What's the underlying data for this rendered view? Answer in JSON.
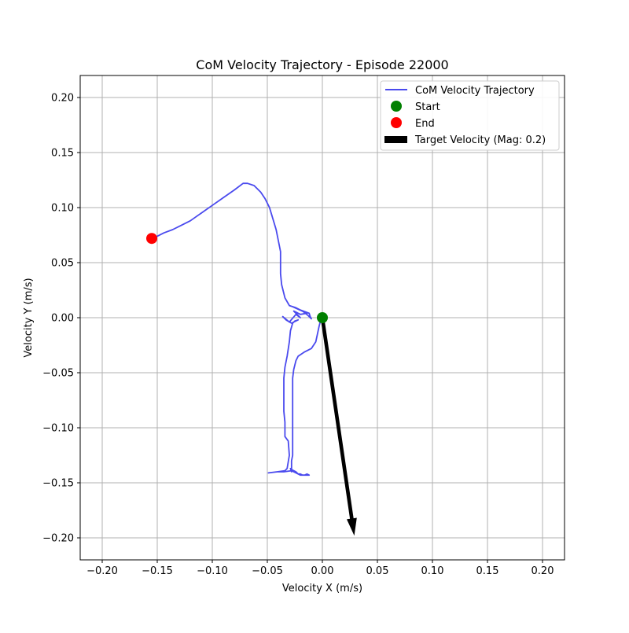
{
  "chart_data": {
    "type": "line",
    "title": "CoM Velocity Trajectory - Episode 22000",
    "xlabel": "Velocity X (m/s)",
    "ylabel": "Velocity Y (m/s)",
    "xlim": [
      -0.22,
      0.22
    ],
    "ylim": [
      -0.22,
      0.22
    ],
    "xticks": [
      -0.2,
      -0.15,
      -0.1,
      -0.05,
      0.0,
      0.05,
      0.1,
      0.15,
      0.2
    ],
    "xtick_labels": [
      "−0.20",
      "−0.15",
      "−0.10",
      "−0.05",
      "0.00",
      "0.05",
      "0.10",
      "0.15",
      "0.20"
    ],
    "yticks": [
      -0.2,
      -0.15,
      -0.1,
      -0.05,
      0.0,
      0.05,
      0.1,
      0.15,
      0.2
    ],
    "ytick_labels": [
      "−0.20",
      "−0.15",
      "−0.10",
      "−0.05",
      "0.00",
      "0.05",
      "0.10",
      "0.15",
      "0.20"
    ],
    "grid": true,
    "legend_position": "top-right",
    "colors": {
      "trajectory": "#4a4aee",
      "start": "#008000",
      "end": "#ff0000",
      "target": "#000000",
      "grid": "#b0b0b0"
    },
    "series": [
      {
        "name": "CoM Velocity Trajectory",
        "points": [
          [
            0.0,
            0.0
          ],
          [
            -0.002,
            -0.004
          ],
          [
            -0.003,
            -0.008
          ],
          [
            -0.006,
            -0.022
          ],
          [
            -0.01,
            -0.028
          ],
          [
            -0.016,
            -0.031
          ],
          [
            -0.022,
            -0.035
          ],
          [
            -0.024,
            -0.039
          ],
          [
            -0.025,
            -0.043
          ],
          [
            -0.026,
            -0.047
          ],
          [
            -0.027,
            -0.055
          ],
          [
            -0.027,
            -0.07
          ],
          [
            -0.027,
            -0.09
          ],
          [
            -0.027,
            -0.11
          ],
          [
            -0.027,
            -0.125
          ],
          [
            -0.028,
            -0.13
          ],
          [
            -0.028,
            -0.14
          ],
          [
            -0.029,
            -0.137
          ],
          [
            -0.028,
            -0.138
          ],
          [
            -0.026,
            -0.139
          ],
          [
            -0.024,
            -0.14
          ],
          [
            -0.022,
            -0.142
          ],
          [
            -0.02,
            -0.142
          ],
          [
            -0.018,
            -0.143
          ],
          [
            -0.016,
            -0.143
          ],
          [
            -0.014,
            -0.142
          ],
          [
            -0.012,
            -0.143
          ],
          [
            -0.02,
            -0.143
          ],
          [
            -0.028,
            -0.139
          ],
          [
            -0.035,
            -0.14
          ],
          [
            -0.041,
            -0.14
          ],
          [
            -0.049,
            -0.141
          ],
          [
            -0.041,
            -0.14
          ],
          [
            -0.034,
            -0.139
          ],
          [
            -0.032,
            -0.137
          ],
          [
            -0.031,
            -0.131
          ],
          [
            -0.03,
            -0.125
          ],
          [
            -0.031,
            -0.112
          ],
          [
            -0.034,
            -0.108
          ],
          [
            -0.034,
            -0.095
          ],
          [
            -0.035,
            -0.085
          ],
          [
            -0.035,
            -0.075
          ],
          [
            -0.035,
            -0.065
          ],
          [
            -0.035,
            -0.055
          ],
          [
            -0.034,
            -0.045
          ],
          [
            -0.032,
            -0.035
          ],
          [
            -0.03,
            -0.022
          ],
          [
            -0.029,
            -0.012
          ],
          [
            -0.027,
            -0.005
          ],
          [
            -0.025,
            -0.003
          ],
          [
            -0.022,
            -0.002
          ],
          [
            -0.028,
            -0.005
          ],
          [
            -0.033,
            -0.002
          ],
          [
            -0.036,
            0.001
          ],
          [
            -0.03,
            -0.004
          ],
          [
            -0.024,
            0.003
          ],
          [
            -0.02,
            0.0
          ],
          [
            -0.026,
            0.006
          ],
          [
            -0.02,
            0.003
          ],
          [
            -0.014,
            0.004
          ],
          [
            -0.027,
            0.01
          ],
          [
            -0.02,
            0.007
          ],
          [
            -0.012,
            0.004
          ],
          [
            -0.011,
            0.001
          ],
          [
            -0.01,
            -0.001
          ],
          [
            -0.013,
            0.002
          ],
          [
            -0.018,
            0.006
          ],
          [
            -0.024,
            0.009
          ],
          [
            -0.03,
            0.011
          ],
          [
            -0.034,
            0.018
          ],
          [
            -0.037,
            0.03
          ],
          [
            -0.038,
            0.04
          ],
          [
            -0.038,
            0.05
          ],
          [
            -0.038,
            0.06
          ],
          [
            -0.04,
            0.07
          ],
          [
            -0.042,
            0.08
          ],
          [
            -0.045,
            0.09
          ],
          [
            -0.048,
            0.1
          ],
          [
            -0.052,
            0.108
          ],
          [
            -0.056,
            0.114
          ],
          [
            -0.062,
            0.12
          ],
          [
            -0.068,
            0.122
          ],
          [
            -0.072,
            0.122
          ],
          [
            -0.08,
            0.116
          ],
          [
            -0.09,
            0.109
          ],
          [
            -0.1,
            0.102
          ],
          [
            -0.11,
            0.095
          ],
          [
            -0.12,
            0.088
          ],
          [
            -0.128,
            0.084
          ],
          [
            -0.136,
            0.08
          ],
          [
            -0.144,
            0.077
          ],
          [
            -0.15,
            0.074
          ],
          [
            -0.155,
            0.072
          ]
        ]
      }
    ],
    "start_point": {
      "label": "Start",
      "x": 0.0,
      "y": 0.0
    },
    "end_point": {
      "label": "End",
      "x": -0.155,
      "y": 0.072
    },
    "target_velocity": {
      "label": "Target Velocity (Mag: 0.2)",
      "magnitude": 0.2,
      "x": 0.029,
      "y": -0.198
    },
    "legend": [
      {
        "label": "CoM Velocity Trajectory",
        "kind": "line"
      },
      {
        "label": "Start",
        "kind": "marker-green"
      },
      {
        "label": "End",
        "kind": "marker-red"
      },
      {
        "label": "Target Velocity (Mag: 0.2)",
        "kind": "arrow"
      }
    ]
  }
}
